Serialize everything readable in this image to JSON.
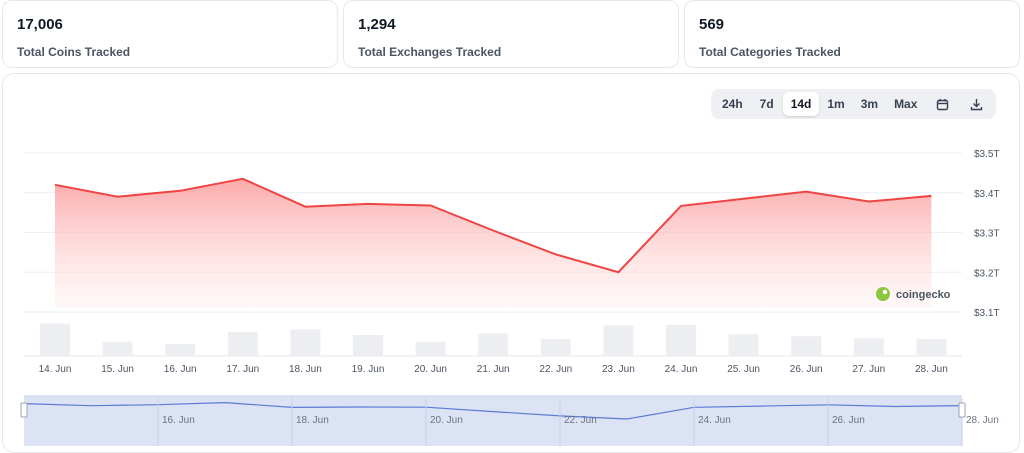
{
  "stats": [
    {
      "value": "17,006",
      "label": "Total Coins Tracked"
    },
    {
      "value": "1,294",
      "label": "Total Exchanges Tracked"
    },
    {
      "value": "569",
      "label": "Total Categories Tracked"
    }
  ],
  "range": {
    "options": [
      "24h",
      "7d",
      "14d",
      "1m",
      "3m",
      "Max"
    ],
    "selected": "14d",
    "icons": [
      "calendar-icon",
      "download-icon"
    ]
  },
  "brand": {
    "name": "coingecko",
    "color": "#8dc63f"
  },
  "colors": {
    "line": "#ef4444",
    "area_top": "#fca5a5",
    "volume": "#eceef1",
    "navigator_fill": "#dbe3f4",
    "navigator_line": "#5b7bd5"
  },
  "chart_data": {
    "type": "area",
    "x": [
      "14. Jun",
      "15. Jun",
      "16. Jun",
      "17. Jun",
      "18. Jun",
      "19. Jun",
      "20. Jun",
      "21. Jun",
      "22. Jun",
      "23. Jun",
      "24. Jun",
      "25. Jun",
      "26. Jun",
      "27. Jun",
      "28. Jun"
    ],
    "series": [
      {
        "values": [
          3.42,
          3.39,
          3.405,
          3.435,
          3.365,
          3.372,
          3.368,
          3.305,
          3.245,
          3.2,
          3.367,
          3.385,
          3.403,
          3.378,
          3.392
        ]
      }
    ],
    "volume": [
      0.95,
      0.42,
      0.35,
      0.7,
      0.78,
      0.62,
      0.42,
      0.66,
      0.5,
      0.9,
      0.92,
      0.64,
      0.58,
      0.52,
      0.5
    ],
    "y_ticks": [
      "$3.1T",
      "$3.2T",
      "$3.3T",
      "$3.4T",
      "$3.5T"
    ],
    "ylim": [
      3.1,
      3.5
    ],
    "grid": true,
    "navigator_ticks": [
      "16. Jun",
      "18. Jun",
      "20. Jun",
      "22. Jun",
      "24. Jun",
      "26. Jun",
      "28. Jun"
    ]
  }
}
